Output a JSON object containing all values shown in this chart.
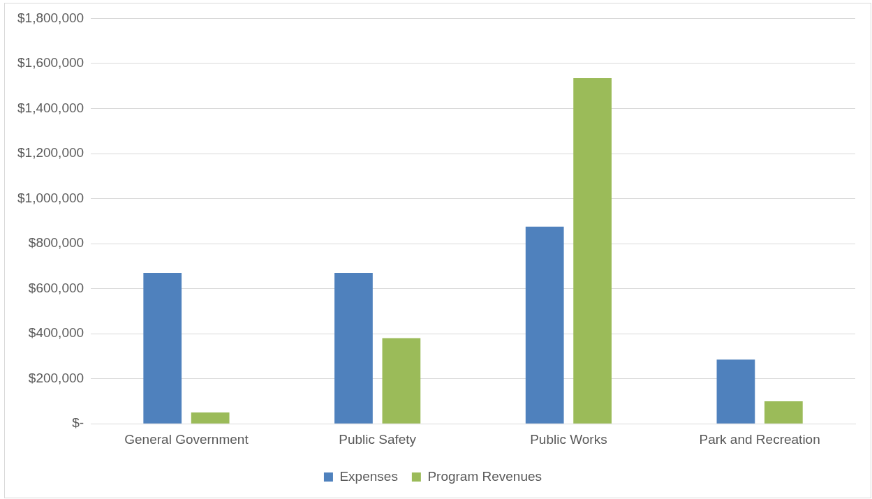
{
  "chart_data": {
    "type": "bar",
    "categories": [
      "General Government",
      "Public Safety",
      "Public Works",
      "Park and Recreation"
    ],
    "series": [
      {
        "name": "Expenses",
        "color": "#4f81bd",
        "values": [
          670000,
          670000,
          875000,
          285000
        ]
      },
      {
        "name": "Program Revenues",
        "color": "#9bbb59",
        "values": [
          50000,
          380000,
          1535000,
          100000
        ]
      }
    ],
    "ylim": [
      0,
      1800000
    ],
    "yticks": [
      {
        "value": 0,
        "label": "$-"
      },
      {
        "value": 200000,
        "label": "$200,000"
      },
      {
        "value": 400000,
        "label": "$400,000"
      },
      {
        "value": 600000,
        "label": "$600,000"
      },
      {
        "value": 800000,
        "label": "$800,000"
      },
      {
        "value": 1000000,
        "label": "$1,000,000"
      },
      {
        "value": 1200000,
        "label": "$1,200,000"
      },
      {
        "value": 1400000,
        "label": "$1,400,000"
      },
      {
        "value": 1600000,
        "label": "$1,600,000"
      },
      {
        "value": 1800000,
        "label": "$1,800,000"
      }
    ],
    "grid": "y",
    "legend": "bottom"
  }
}
